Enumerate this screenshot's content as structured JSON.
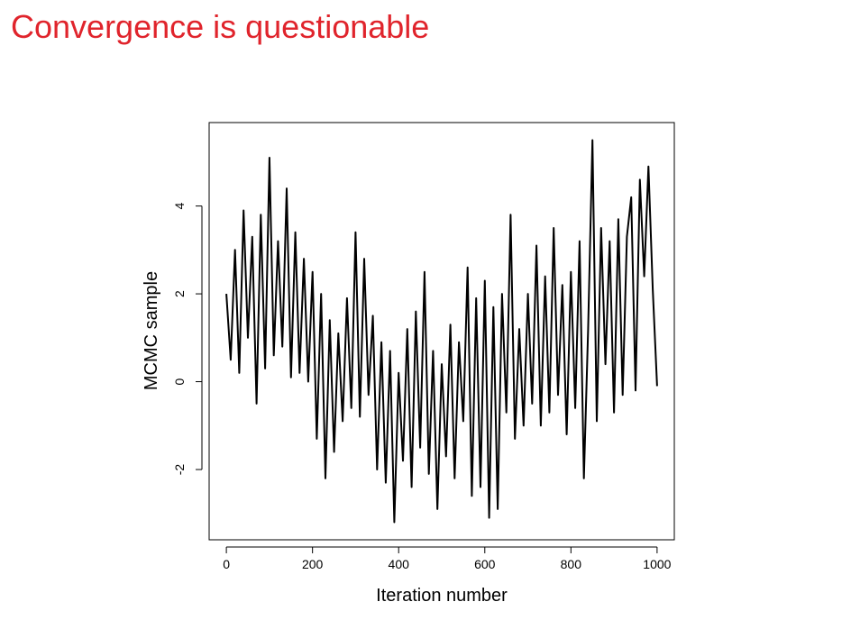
{
  "slide": {
    "title": "Convergence is questionable",
    "title_color": "#e0242c"
  },
  "chart_data": {
    "type": "line",
    "title": "",
    "xlabel": "Iteration number",
    "ylabel": "MCMC sample",
    "xlim": [
      -40,
      1040
    ],
    "ylim": [
      -3.6,
      5.9
    ],
    "x_ticks": [
      0,
      200,
      400,
      600,
      800,
      1000
    ],
    "y_ticks": [
      -2,
      0,
      2,
      4
    ],
    "x_tick_labels": [
      "0",
      "200",
      "400",
      "600",
      "800",
      "1000"
    ],
    "y_tick_labels": [
      "-2",
      "0",
      "2",
      "4"
    ],
    "grid": false,
    "legend": "none",
    "line_color": "#000000",
    "series": [
      {
        "x": [
          0,
          10,
          20,
          30,
          40,
          50,
          60,
          70,
          80,
          90,
          100,
          110,
          120,
          130,
          140,
          150,
          160,
          170,
          180,
          190,
          200,
          210,
          220,
          230,
          240,
          250,
          260,
          270,
          280,
          290,
          300,
          310,
          320,
          330,
          340,
          350,
          360,
          370,
          380,
          390,
          400,
          410,
          420,
          430,
          440,
          450,
          460,
          470,
          480,
          490,
          500,
          510,
          520,
          530,
          540,
          550,
          560,
          570,
          580,
          590,
          600,
          610,
          620,
          630,
          640,
          650,
          660,
          670,
          680,
          690,
          700,
          710,
          720,
          730,
          740,
          750,
          760,
          770,
          780,
          790,
          800,
          810,
          820,
          830,
          840,
          850,
          860,
          870,
          880,
          890,
          900,
          910,
          920,
          930,
          940,
          950,
          960,
          970,
          980,
          990,
          1000
        ],
        "y": [
          2.0,
          0.5,
          3.0,
          0.2,
          3.9,
          1.0,
          3.3,
          -0.5,
          3.8,
          0.3,
          5.1,
          0.6,
          3.2,
          0.8,
          4.4,
          0.1,
          3.4,
          0.2,
          2.8,
          0.0,
          2.5,
          -1.3,
          2.0,
          -2.2,
          1.4,
          -1.6,
          1.1,
          -0.9,
          1.9,
          -0.6,
          3.4,
          -0.8,
          2.8,
          -0.3,
          1.5,
          -2.0,
          0.9,
          -2.3,
          0.7,
          -3.2,
          0.2,
          -1.8,
          1.2,
          -2.4,
          1.6,
          -1.5,
          2.5,
          -2.1,
          0.7,
          -2.9,
          0.4,
          -1.7,
          1.3,
          -2.2,
          0.9,
          -0.9,
          2.6,
          -2.6,
          1.9,
          -2.4,
          2.3,
          -3.1,
          1.7,
          -2.9,
          2.0,
          -0.7,
          3.8,
          -1.3,
          1.2,
          -1.0,
          2.0,
          -0.5,
          3.1,
          -1.0,
          2.4,
          -0.7,
          3.5,
          -0.3,
          2.2,
          -1.2,
          2.5,
          -0.6,
          3.2,
          -2.2,
          1.2,
          5.5,
          -0.9,
          3.5,
          0.4,
          3.2,
          -0.7,
          3.7,
          -0.3,
          3.3,
          4.2,
          -0.2,
          4.6,
          2.4,
          4.9,
          2.1,
          -0.1
        ]
      }
    ]
  }
}
